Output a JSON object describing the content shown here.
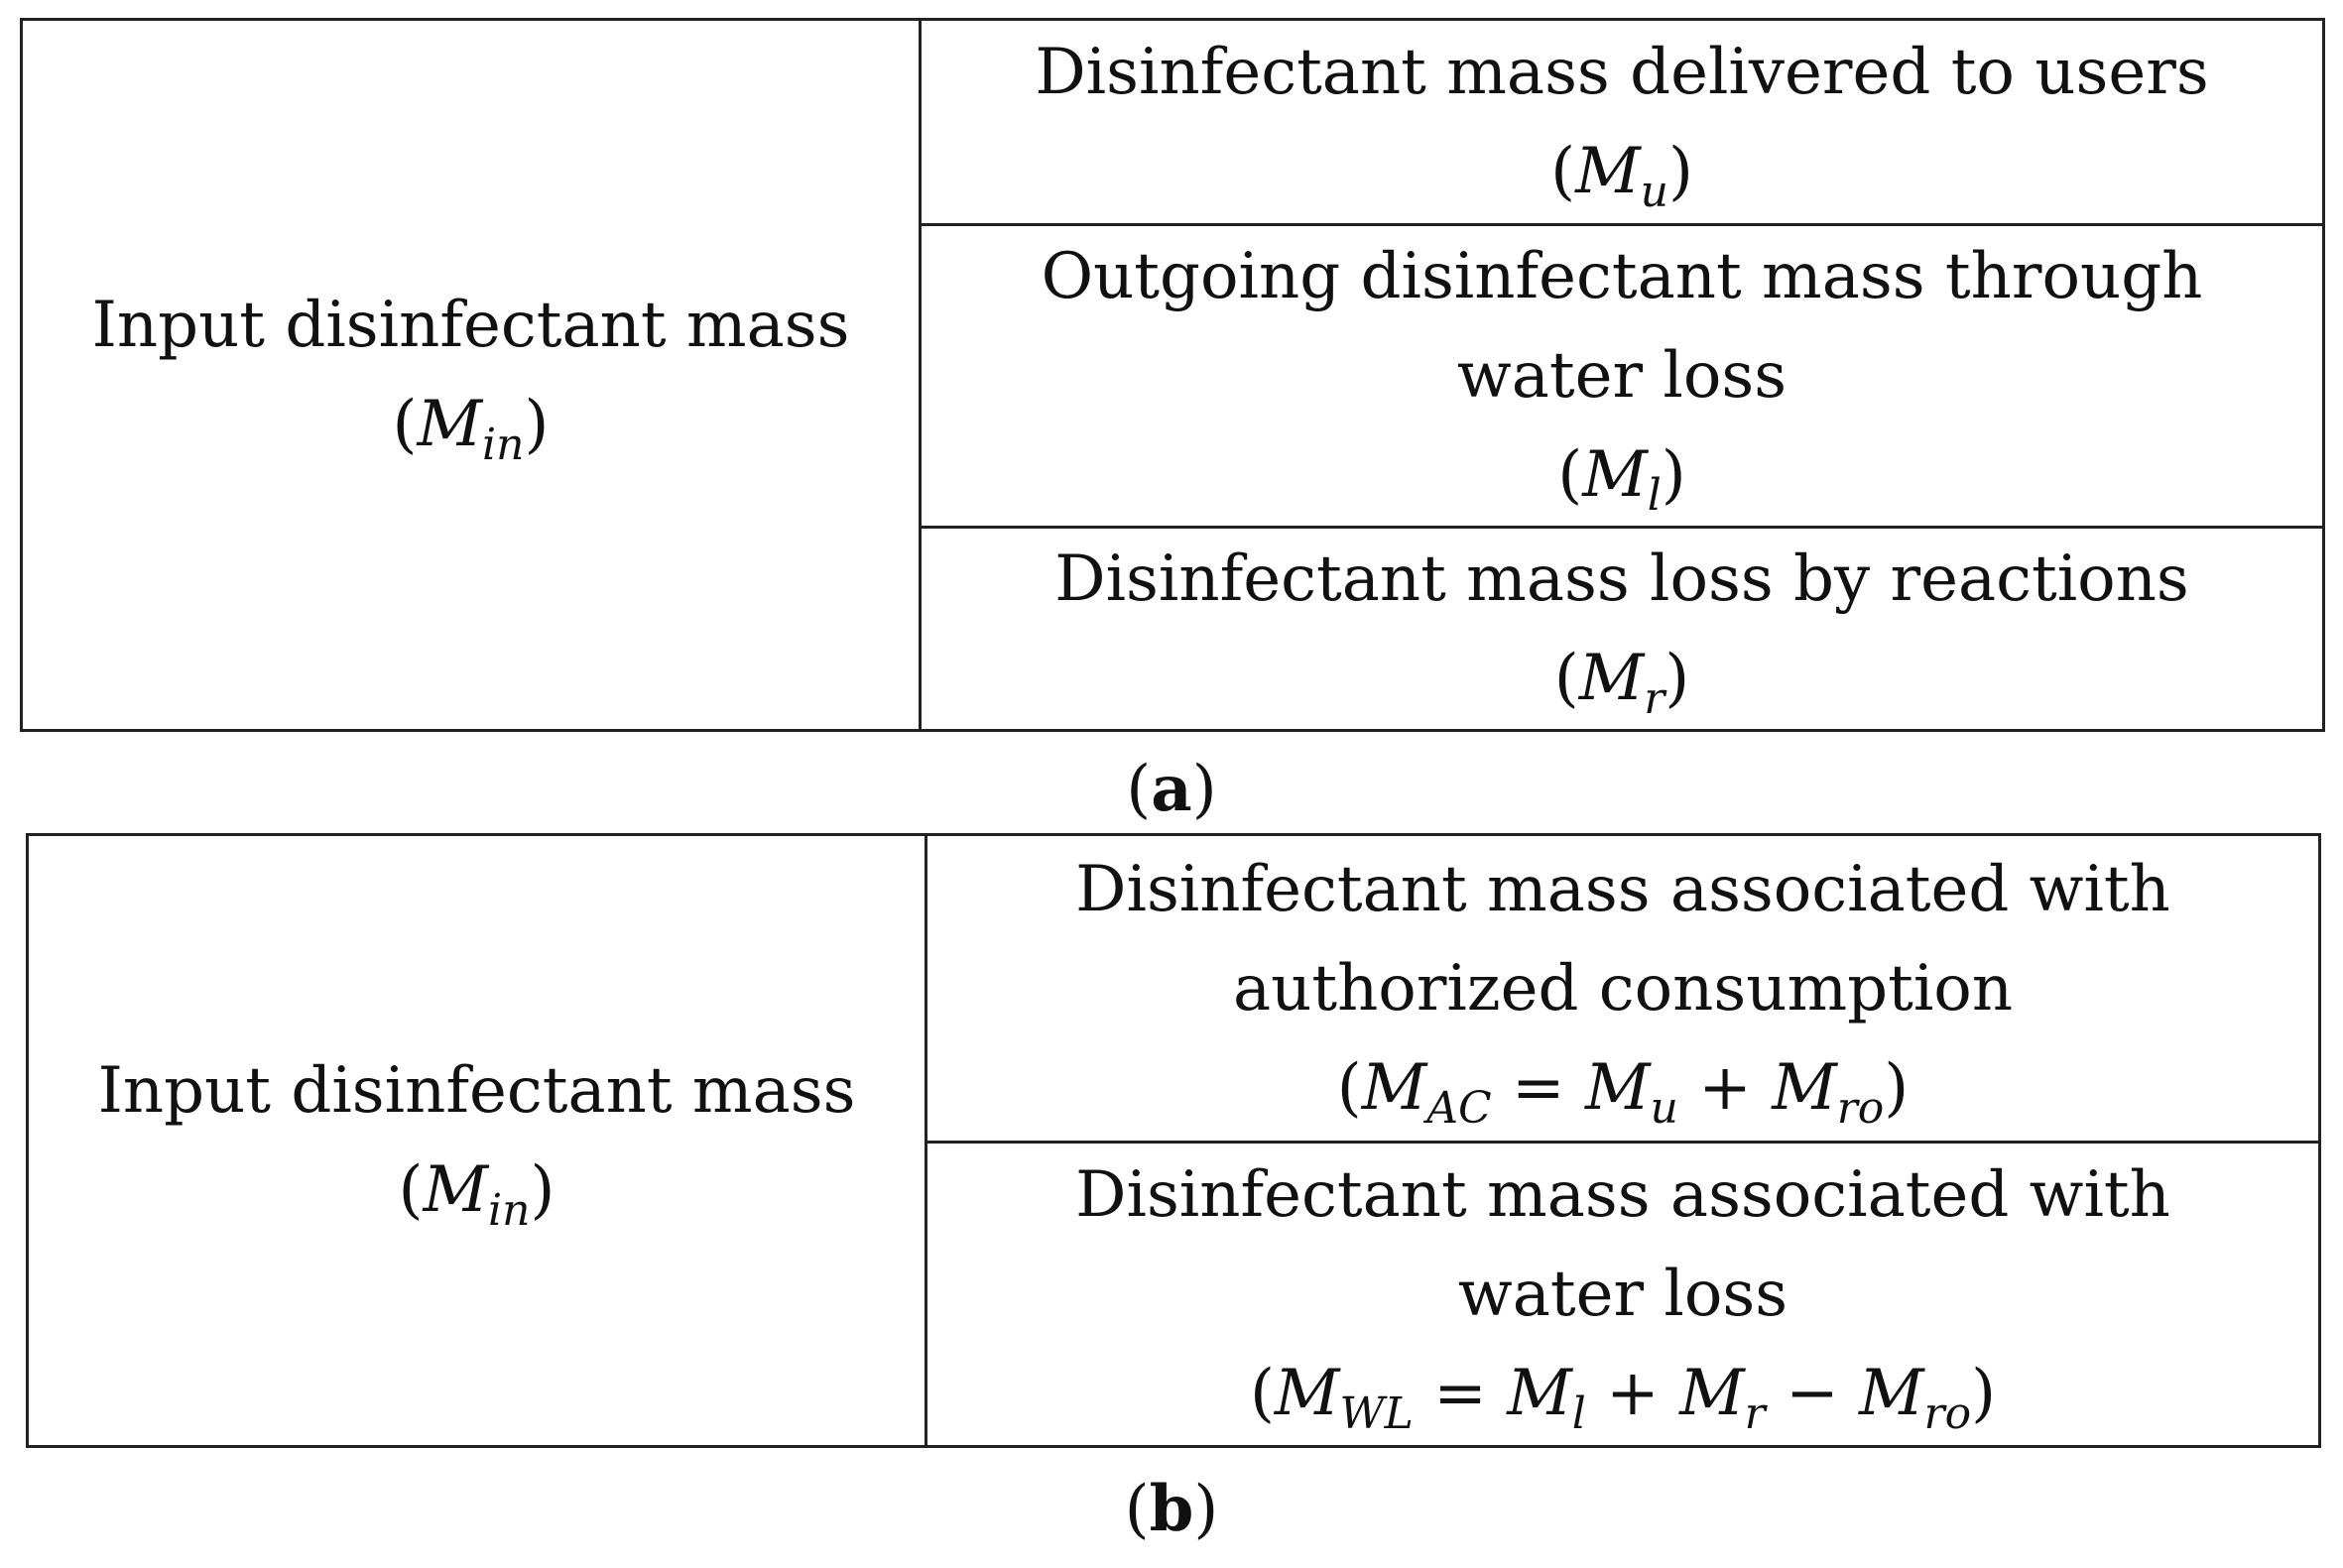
{
  "panel_a": {
    "left": {
      "label": "Input disinfectant mass",
      "symbol": "M",
      "sub": "in"
    },
    "rows": [
      {
        "lines": [
          "Disinfectant mass delivered to users"
        ],
        "formula": {
          "symbol": "M",
          "sub": "u"
        }
      },
      {
        "lines": [
          "Outgoing disinfectant mass through",
          "water loss"
        ],
        "formula": {
          "symbol": "M",
          "sub": "l"
        }
      },
      {
        "lines": [
          "Disinfectant mass loss by reactions"
        ],
        "formula": {
          "symbol": "M",
          "sub": "r"
        }
      }
    ],
    "caption": "a"
  },
  "panel_b": {
    "left": {
      "label": "Input disinfectant mass",
      "symbol": "M",
      "sub": "in"
    },
    "rows": [
      {
        "lines": [
          "Disinfectant mass associated with",
          "authorized consumption"
        ],
        "formula": {
          "t1": "M",
          "s1": "AC",
          "op1": "=",
          "t2": "M",
          "s2": "u",
          "op2": "+",
          "t3": "M",
          "s3": "ro"
        }
      },
      {
        "lines": [
          "Disinfectant mass associated with",
          "water loss"
        ],
        "formula": {
          "t1": "M",
          "s1": "WL",
          "op1": "=",
          "t2": "M",
          "s2": "l",
          "op2": "+",
          "t3": "M",
          "s3": "r",
          "op3": "−",
          "t4": "M",
          "s4": "ro"
        }
      }
    ],
    "caption": "b"
  }
}
